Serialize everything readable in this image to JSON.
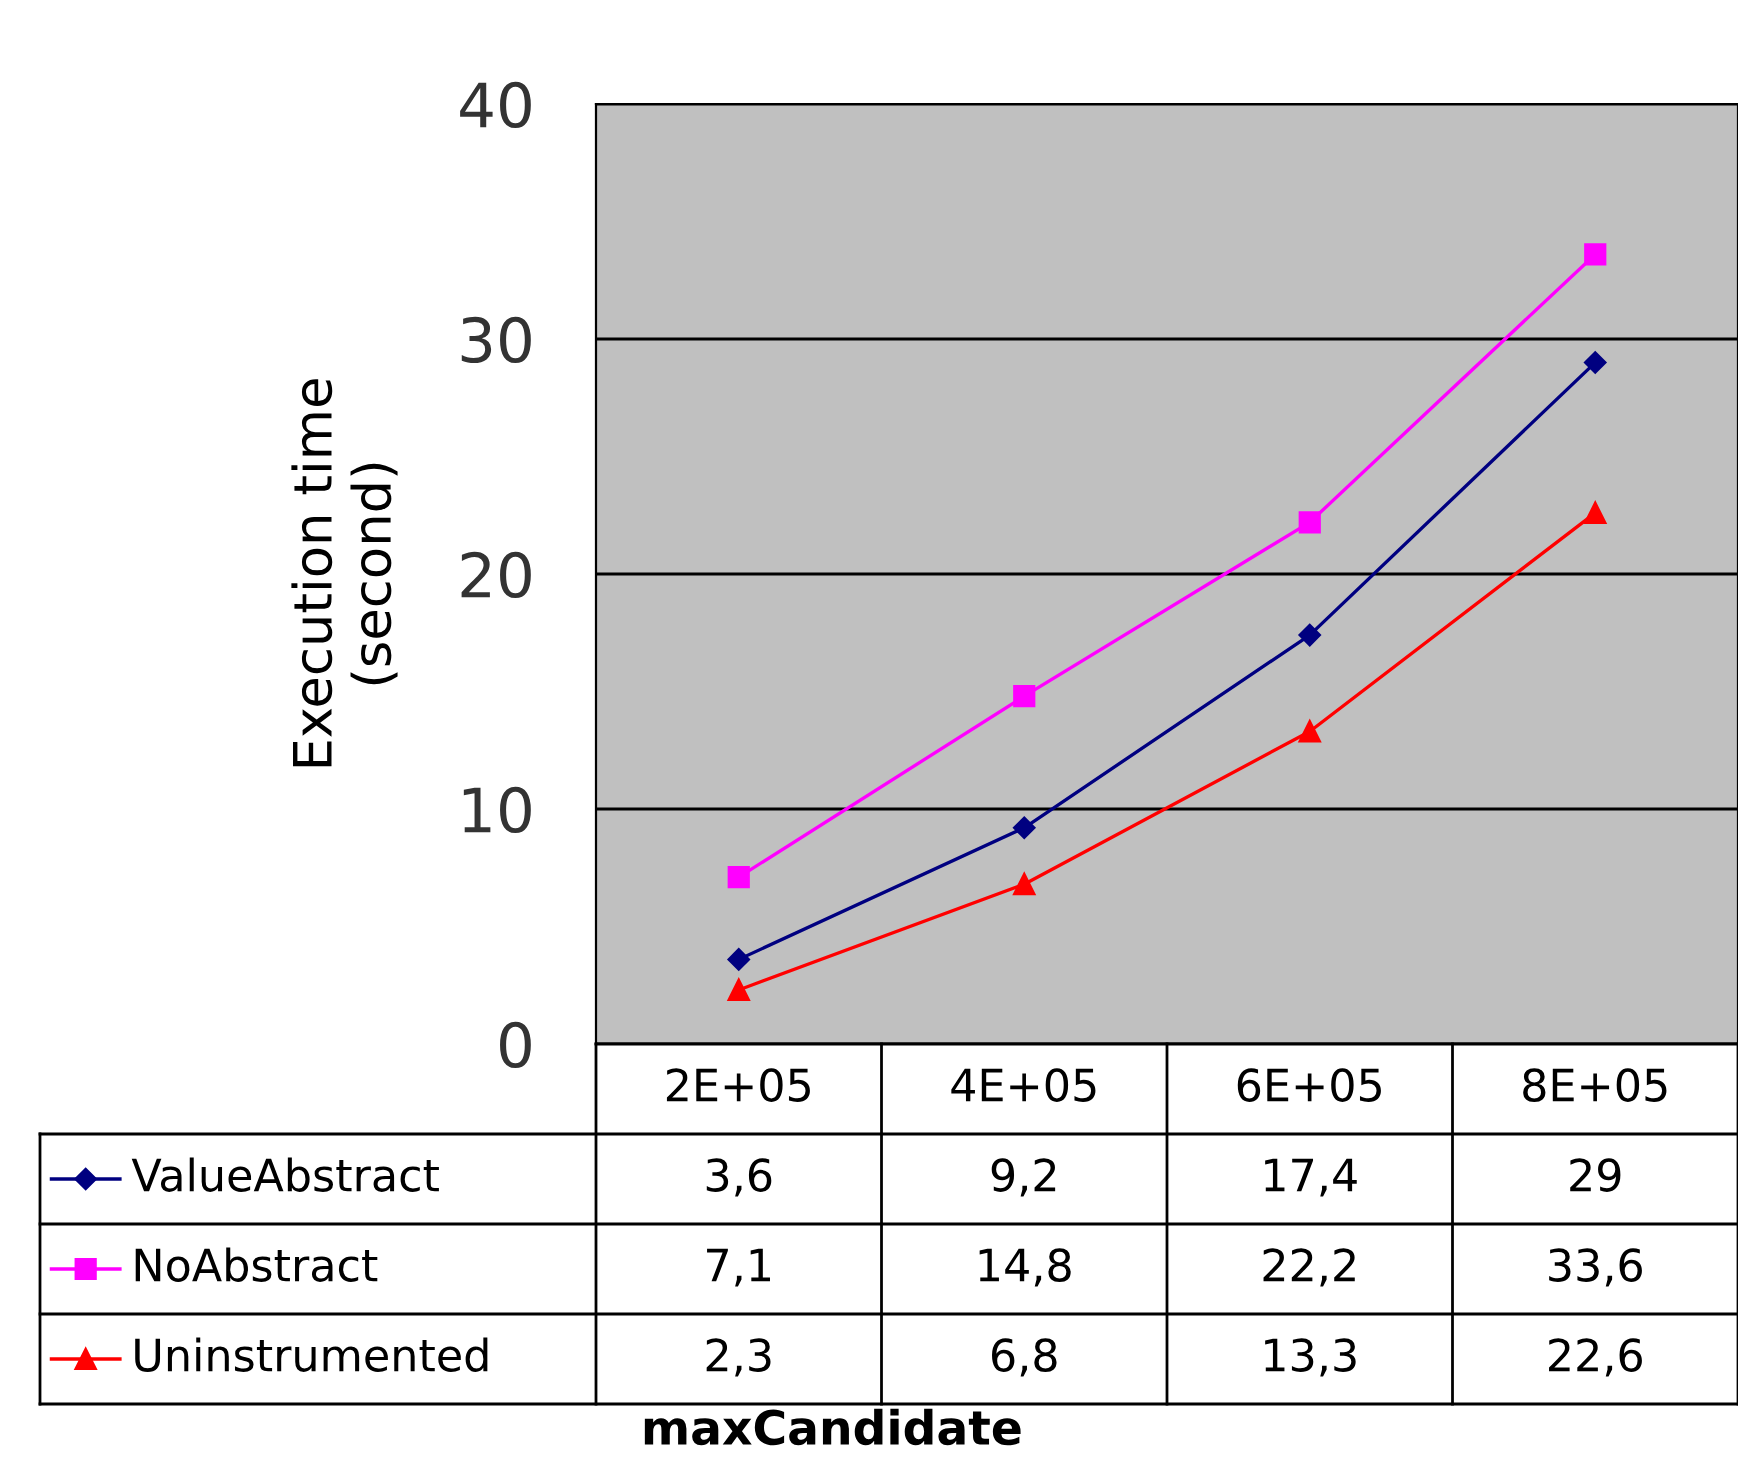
{
  "chart_data": {
    "type": "line",
    "annotations": [
      "maxCandidate"
    ],
    "ylabel": "Execution time\n(second)",
    "categories": [
      "2E+05",
      "4E+05",
      "6E+05",
      "8E+05"
    ],
    "series": [
      {
        "name": "ValueAbstract",
        "color": "#000080",
        "marker": "diamond",
        "values": [
          3.6,
          9.2,
          17.4,
          29
        ],
        "value_labels": [
          "3,6",
          "9,2",
          "17,4",
          "29"
        ]
      },
      {
        "name": "NoAbstract",
        "color": "#ff00ff",
        "marker": "square",
        "values": [
          7.1,
          14.8,
          22.2,
          33.6
        ],
        "value_labels": [
          "7,1",
          "14,8",
          "22,2",
          "33,6"
        ]
      },
      {
        "name": "Uninstrumented",
        "color": "#ff0000",
        "marker": "triangle",
        "values": [
          2.3,
          6.8,
          13.3,
          22.6
        ],
        "value_labels": [
          "2,3",
          "6,8",
          "13,3",
          "22,6"
        ]
      }
    ],
    "ylim": [
      0,
      40
    ],
    "yticks": [
      0,
      10,
      20,
      30,
      40
    ],
    "grid": "y",
    "legend": "bottom left"
  }
}
